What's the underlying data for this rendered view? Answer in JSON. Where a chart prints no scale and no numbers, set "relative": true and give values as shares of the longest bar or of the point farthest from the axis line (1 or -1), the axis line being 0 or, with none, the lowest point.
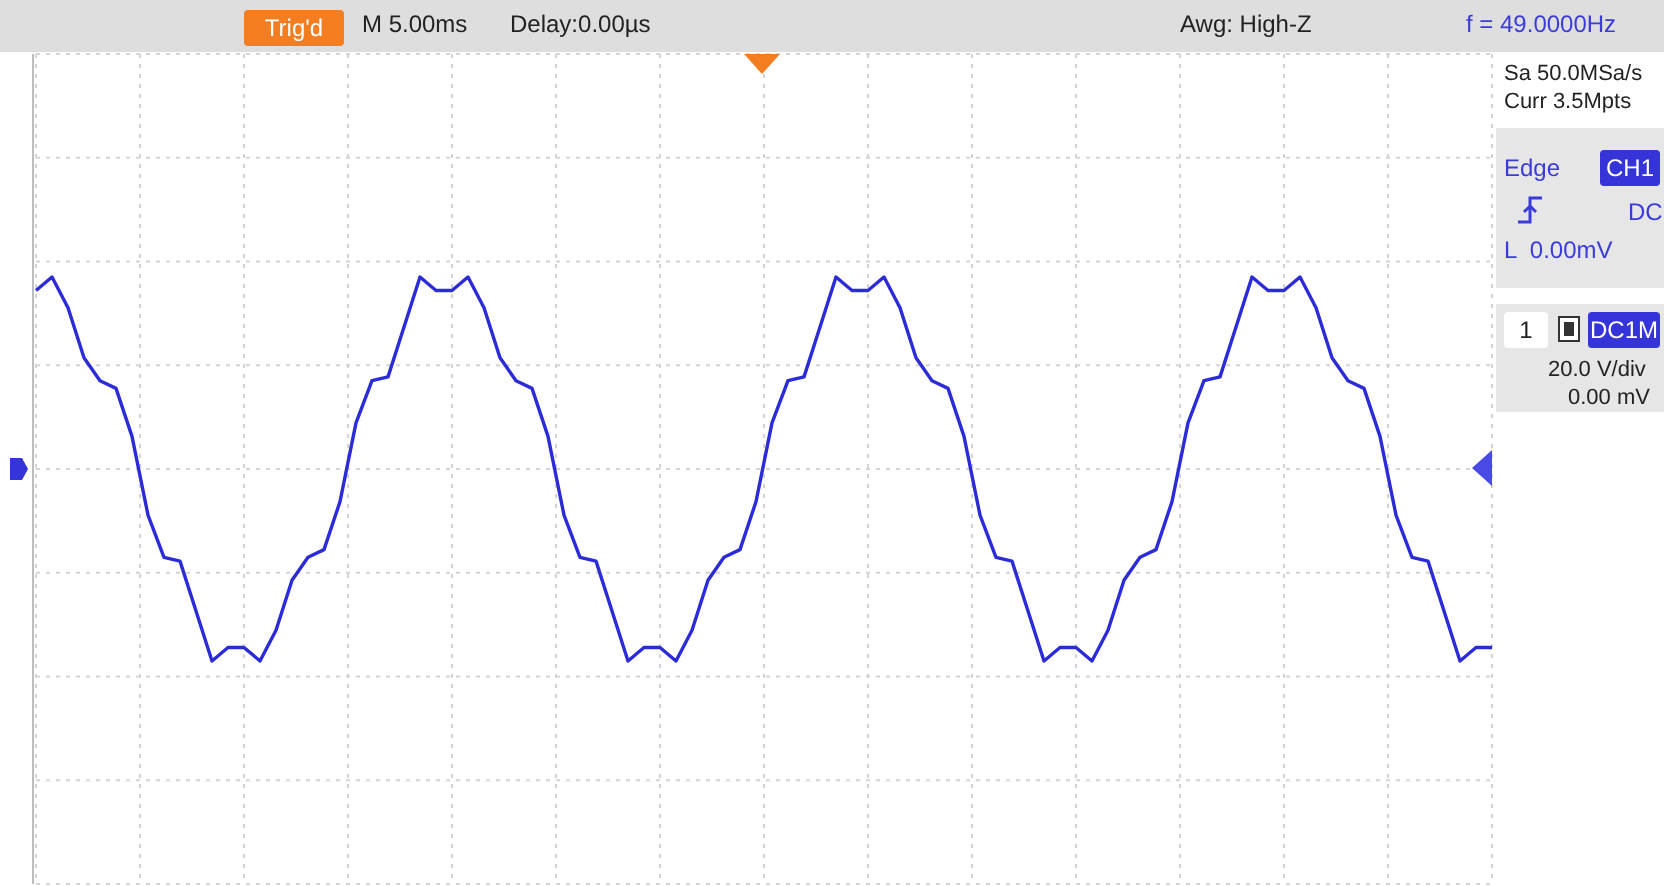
{
  "chart_data": {
    "type": "line",
    "relative": true,
    "grid": true,
    "tick_labels": false,
    "color": "#2b2bd8",
    "categories": [
      null,
      null,
      null,
      null,
      null,
      null,
      null,
      null,
      null,
      null,
      null,
      null,
      null,
      null,
      null,
      null,
      null,
      null,
      null,
      null,
      null,
      null,
      null,
      null,
      null,
      null,
      null,
      null,
      null,
      null,
      null,
      null,
      null,
      null,
      null,
      null,
      null,
      null,
      null,
      null,
      null,
      null,
      null,
      null,
      null,
      null,
      null,
      null,
      null,
      null,
      null,
      null,
      null,
      null,
      null,
      null,
      null,
      null,
      null,
      null,
      null,
      null,
      null,
      null,
      null,
      null,
      null,
      null,
      null,
      null,
      null,
      null,
      null,
      null,
      null,
      null,
      null,
      null,
      null,
      null,
      null,
      null,
      null,
      null,
      null,
      null,
      null,
      null,
      null,
      null,
      null,
      null
    ],
    "values": [
      0.93,
      1.0,
      0.84,
      0.58,
      0.46,
      0.42,
      0.17,
      -0.24,
      -0.46,
      -0.48,
      -0.74,
      -1.0,
      -0.93,
      -0.93,
      -1.0,
      -0.84,
      -0.58,
      -0.46,
      -0.42,
      -0.17,
      0.24,
      0.46,
      0.48,
      0.74,
      1.0,
      0.93,
      0.93,
      1.0,
      0.84,
      0.58,
      0.46,
      0.42,
      0.17,
      -0.24,
      -0.46,
      -0.48,
      -0.74,
      -1.0,
      -0.93,
      -0.93,
      -1.0,
      -0.84,
      -0.58,
      -0.46,
      -0.42,
      -0.17,
      0.24,
      0.46,
      0.48,
      0.74,
      1.0,
      0.93,
      0.93,
      1.0,
      0.84,
      0.58,
      0.46,
      0.42,
      0.17,
      -0.24,
      -0.46,
      -0.48,
      -0.74,
      -1.0,
      -0.93,
      -0.93,
      -1.0,
      -0.84,
      -0.58,
      -0.46,
      -0.42,
      -0.17,
      0.24,
      0.46,
      0.48,
      0.74,
      1.0,
      0.93,
      0.93,
      1.0,
      0.84,
      0.58,
      0.46,
      0.42,
      0.17,
      -0.24,
      -0.46,
      -0.48,
      -0.74,
      -1.0,
      -0.93,
      -0.93
    ],
    "annotations": [
      "Trig'd",
      "M 5.00ms",
      "Delay:0.00µs",
      "Awg: High-Z",
      "f = 49.0000Hz",
      "Sa 50.0MSa/s",
      "Curr 3.5Mpts",
      "Edge",
      "CH1",
      "DC",
      "L  0.00mV",
      "1",
      "DC1M",
      "20.0 V/div",
      "0.00 mV"
    ]
  }
}
